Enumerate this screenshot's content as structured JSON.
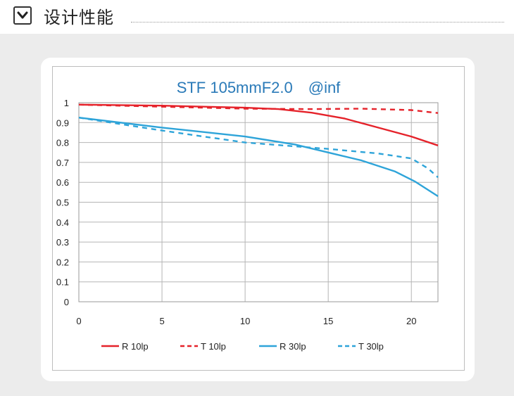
{
  "header": {
    "title": "设计性能",
    "toggle_icon": "chevron-down-icon"
  },
  "colors": {
    "red": "#e5222a",
    "blue": "#2ea4d9",
    "title": "#2a7ab8"
  },
  "chart_data": {
    "type": "line",
    "title": "STF 105mmF2.0　@inf",
    "xlabel": "",
    "ylabel": "",
    "xlim": [
      0,
      21.6
    ],
    "ylim": [
      0,
      1
    ],
    "xticks": [
      "0",
      "5",
      "10",
      "15",
      "20"
    ],
    "yticks": [
      "0",
      "0.1",
      "0.2",
      "0.3",
      "0.4",
      "0.5",
      "0.6",
      "0.7",
      "0.8",
      "0.9",
      "1"
    ],
    "grid": true,
    "legend_position": "bottom",
    "series": [
      {
        "name": "R 10lp",
        "color": "#e5222a",
        "dashed": false,
        "points": [
          [
            0,
            0.99
          ],
          [
            5,
            0.985
          ],
          [
            10,
            0.975
          ],
          [
            12,
            0.968
          ],
          [
            14,
            0.95
          ],
          [
            16,
            0.92
          ],
          [
            18,
            0.875
          ],
          [
            20,
            0.83
          ],
          [
            21.6,
            0.785
          ]
        ]
      },
      {
        "name": "T 10lp",
        "color": "#e5222a",
        "dashed": true,
        "points": [
          [
            0,
            0.99
          ],
          [
            5,
            0.98
          ],
          [
            10,
            0.97
          ],
          [
            14,
            0.968
          ],
          [
            17,
            0.97
          ],
          [
            20,
            0.963
          ],
          [
            21.6,
            0.948
          ]
        ]
      },
      {
        "name": "R 30lp",
        "color": "#2ea4d9",
        "dashed": false,
        "points": [
          [
            0,
            0.925
          ],
          [
            5,
            0.875
          ],
          [
            10,
            0.83
          ],
          [
            13,
            0.79
          ],
          [
            15,
            0.75
          ],
          [
            17,
            0.71
          ],
          [
            19,
            0.655
          ],
          [
            20.2,
            0.605
          ],
          [
            21.6,
            0.53
          ]
        ]
      },
      {
        "name": "T 30lp",
        "color": "#2ea4d9",
        "dashed": true,
        "points": [
          [
            0,
            0.925
          ],
          [
            5,
            0.86
          ],
          [
            10,
            0.8
          ],
          [
            15,
            0.768
          ],
          [
            18,
            0.745
          ],
          [
            20,
            0.72
          ],
          [
            21,
            0.67
          ],
          [
            21.6,
            0.625
          ]
        ]
      }
    ]
  }
}
